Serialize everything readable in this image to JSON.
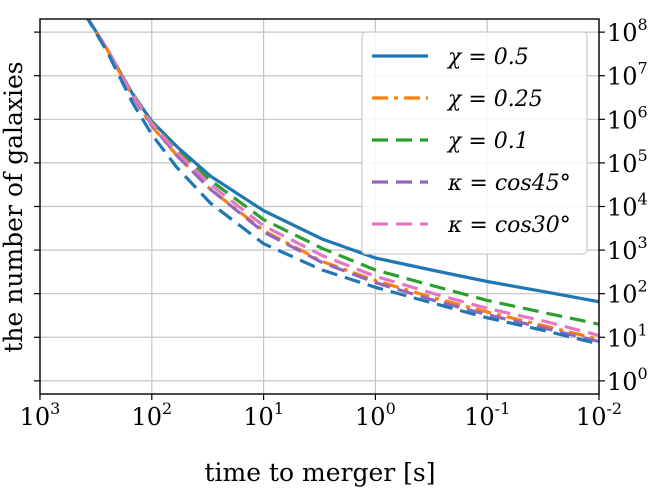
{
  "chart_data": {
    "type": "line",
    "title": "",
    "xlabel": "time to merger [s]",
    "ylabel": "the number of galaxies",
    "x_scale": "log",
    "x_reversed": true,
    "xlim": [
      1000,
      0.01
    ],
    "y_scale": "log",
    "ylim": [
      0.5,
      200000000.0
    ],
    "right_ticks": [
      1,
      10,
      100,
      1000,
      10000,
      100000,
      1000000,
      10000000,
      100000000
    ],
    "right_tick_labels": [
      {
        "base": "10",
        "exp": "0"
      },
      {
        "base": "10",
        "exp": "1"
      },
      {
        "base": "10",
        "exp": "2"
      },
      {
        "base": "10",
        "exp": "3"
      },
      {
        "base": "10",
        "exp": "4"
      },
      {
        "base": "10",
        "exp": "5"
      },
      {
        "base": "10",
        "exp": "6"
      },
      {
        "base": "10",
        "exp": "7"
      },
      {
        "base": "10",
        "exp": "8"
      }
    ],
    "x_ticks": [
      1000,
      100,
      10,
      1,
      0.1,
      0.01
    ],
    "x_tick_labels": [
      {
        "base": "10",
        "exp": "3"
      },
      {
        "base": "10",
        "exp": "2"
      },
      {
        "base": "10",
        "exp": "1"
      },
      {
        "base": "10",
        "exp": "0"
      },
      {
        "base": "10",
        "exp": "-1"
      },
      {
        "base": "10",
        "exp": "-2"
      }
    ],
    "grid": true,
    "legend_position": "top-right",
    "series": [
      {
        "name": "χ = 0.5",
        "color": "#1f77b4",
        "dash": "solid",
        "x": [
          400,
          250,
          150,
          100,
          60,
          30,
          10,
          3,
          1,
          0.3,
          0.1,
          0.03,
          0.01
        ],
        "y": [
          270000000,
          40000000,
          4000000,
          900000,
          240000,
          50000,
          8000,
          1800,
          660,
          340,
          190,
          110,
          65
        ]
      },
      {
        "name": "χ = 0.25",
        "color": "#ff7f0e",
        "dash": "dashdot",
        "x": [
          400,
          250,
          150,
          100,
          60,
          30,
          10,
          3,
          1,
          0.3,
          0.1,
          0.03,
          0.01
        ],
        "y": [
          270000000,
          40000000,
          3500000,
          700000,
          150000,
          25000,
          2800,
          550,
          200,
          80,
          38,
          18,
          9
        ]
      },
      {
        "name": "χ = 0.1",
        "color": "#2ca02c",
        "dash": "dash",
        "x": [
          400,
          250,
          150,
          100,
          60,
          30,
          10,
          3,
          1,
          0.3,
          0.1,
          0.03,
          0.01
        ],
        "y": [
          270000000,
          40000000,
          4000000,
          850000,
          200000,
          40000,
          5000,
          1100,
          350,
          150,
          70,
          36,
          20
        ]
      },
      {
        "name": "κ = cos45°",
        "color": "#9467bd",
        "dash": "dash",
        "x": [
          400,
          250,
          150,
          100,
          60,
          30,
          10,
          3,
          1,
          0.3,
          0.1,
          0.03,
          0.01
        ],
        "y": [
          270000000,
          40000000,
          3500000,
          750000,
          150000,
          25000,
          2600,
          520,
          180,
          70,
          33,
          16,
          8
        ]
      },
      {
        "name": "κ = cos30°",
        "color": "#e377c2",
        "dash": "dash",
        "x": [
          400,
          250,
          150,
          100,
          60,
          30,
          10,
          3,
          1,
          0.3,
          0.1,
          0.03,
          0.01
        ],
        "y": [
          270000000,
          40000000,
          3800000,
          800000,
          180000,
          32000,
          3600,
          750,
          250,
          100,
          46,
          23,
          11
        ]
      },
      {
        "name": "",
        "color": "#1f77b4",
        "dash": "dash",
        "x": [
          400,
          250,
          150,
          100,
          60,
          30,
          10,
          3,
          1,
          0.3,
          0.1,
          0.03,
          0.01
        ],
        "y": [
          270000000,
          35000000,
          2500000,
          450000,
          80000,
          12000,
          1400,
          350,
          140,
          60,
          28,
          14,
          7
        ]
      }
    ]
  }
}
